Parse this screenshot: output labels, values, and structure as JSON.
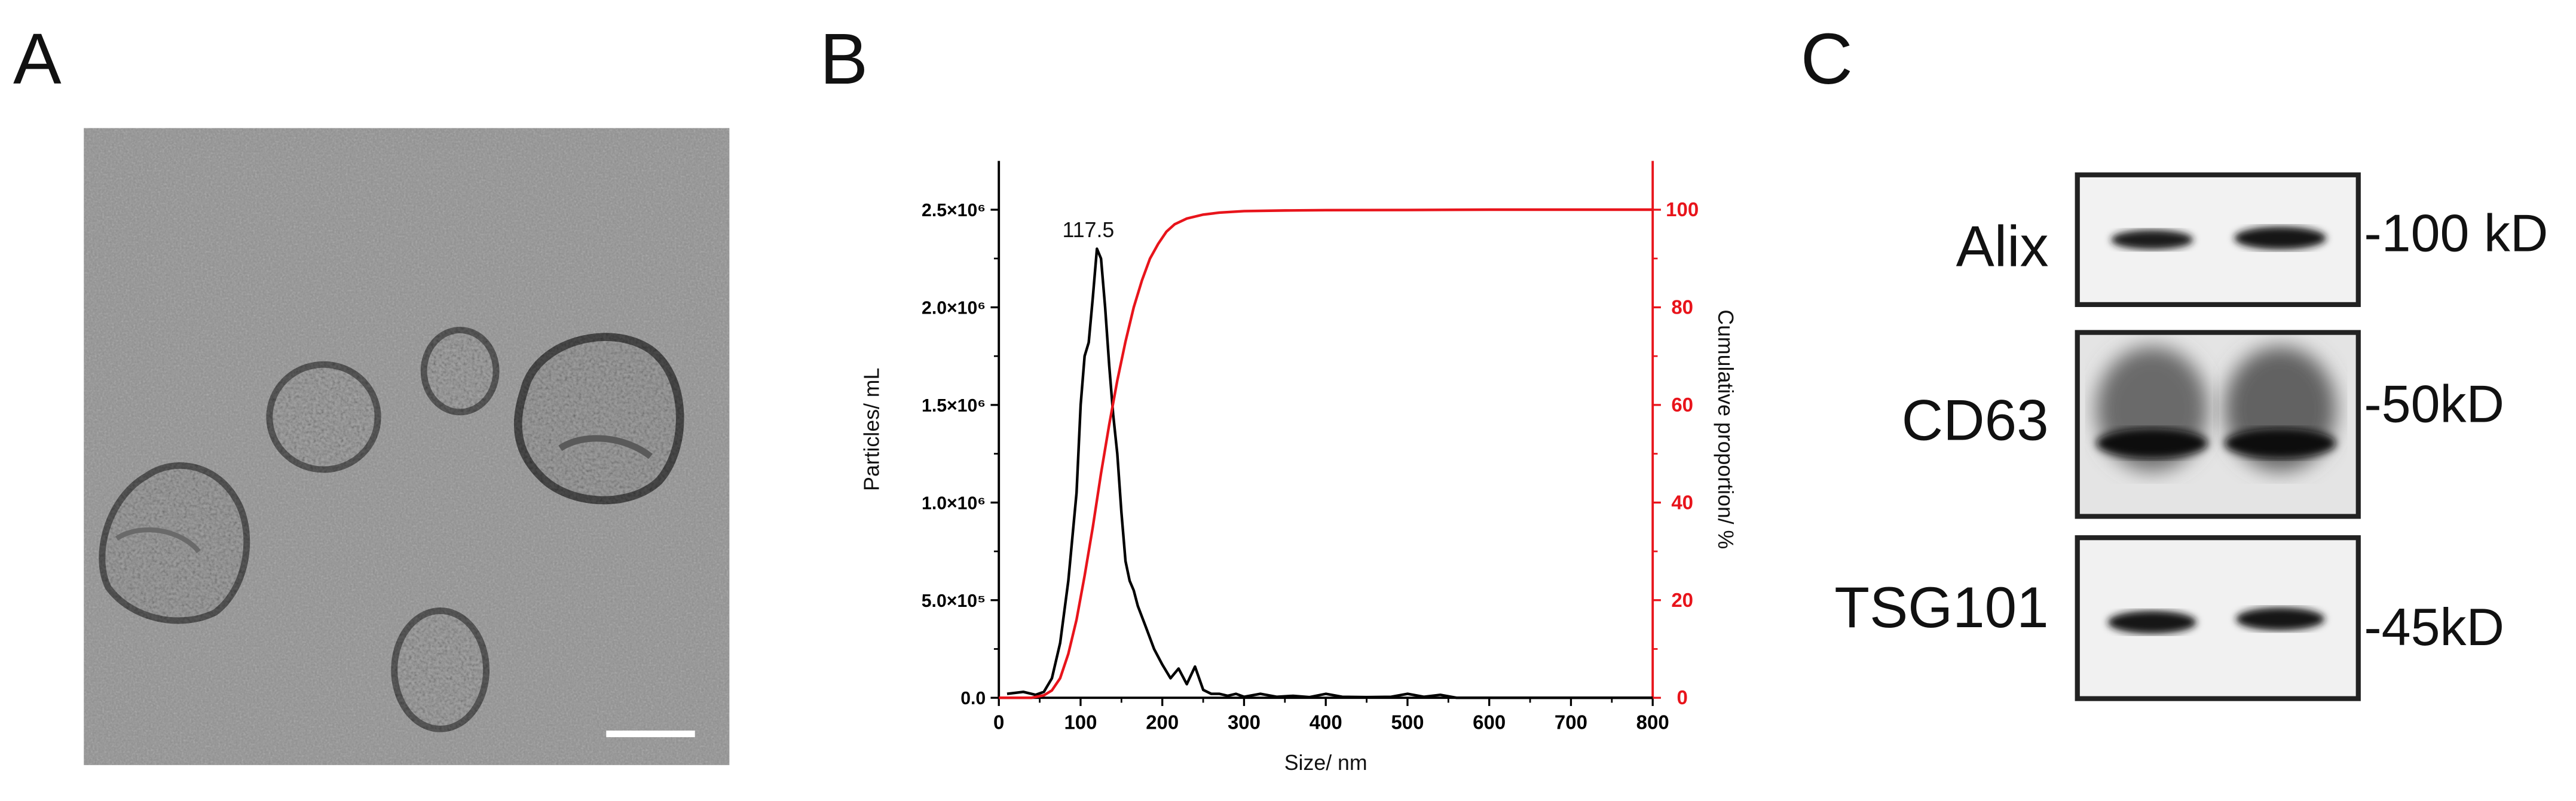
{
  "panels": {
    "a": {
      "letter": "A"
    },
    "b": {
      "letter": "B"
    },
    "c": {
      "letter": "C"
    }
  },
  "chart_data": {
    "type": "line",
    "title": "",
    "xlabel": "Size/ nm",
    "ylabel": "Particles/ mL",
    "y2label": "Cumulative proportion/ %",
    "xlim": [
      0,
      800
    ],
    "ylim": [
      0,
      2750000.0
    ],
    "y2lim": [
      0,
      110
    ],
    "x_ticks": [
      "0",
      "100",
      "200",
      "300",
      "400",
      "500",
      "600",
      "700",
      "800"
    ],
    "y_ticks": [
      {
        "value": 0,
        "label": "0.0"
      },
      {
        "value": 500000,
        "label": "5.0×10⁵"
      },
      {
        "value": 1000000,
        "label": "1.0×10⁶"
      },
      {
        "value": 1500000,
        "label": "1.5×10⁶"
      },
      {
        "value": 2000000,
        "label": "2.0×10⁶"
      },
      {
        "value": 2500000,
        "label": "2.5×10⁶"
      }
    ],
    "y2_ticks": [
      "0",
      "20",
      "40",
      "60",
      "80",
      "100"
    ],
    "peak_annotation": {
      "x": 117.5,
      "y": 2300000.0,
      "text": "117.5"
    },
    "grid": false,
    "series": [
      {
        "color": "#000000",
        "axis": "left",
        "x": [
          10,
          30,
          45,
          55,
          65,
          75,
          85,
          95,
          100,
          105,
          110,
          115,
          120,
          125,
          130,
          135,
          140,
          145,
          150,
          155,
          160,
          165,
          170,
          180,
          190,
          200,
          210,
          220,
          230,
          240,
          250,
          260,
          270,
          280,
          290,
          300,
          320,
          340,
          360,
          380,
          400,
          420,
          450,
          480,
          500,
          520,
          540,
          560,
          600,
          650,
          700,
          750,
          800
        ],
        "y": [
          20000,
          30000,
          15000,
          30000,
          100000,
          280000,
          600000,
          1050000,
          1500000,
          1750000,
          1820000,
          2050000,
          2300000,
          2250000,
          2000000,
          1700000,
          1450000,
          1250000,
          950000,
          700000,
          600000,
          550000,
          470000,
          360000,
          250000,
          170000,
          100000,
          150000,
          70000,
          160000,
          40000,
          20000,
          20000,
          10000,
          20000,
          5000,
          20000,
          5000,
          10000,
          3000,
          20000,
          5000,
          3000,
          5000,
          20000,
          5000,
          15000,
          0,
          0,
          0,
          0,
          0,
          0
        ]
      },
      {
        "color": "#e8141b",
        "axis": "right",
        "x": [
          0,
          20,
          40,
          55,
          65,
          75,
          85,
          95,
          105,
          115,
          125,
          135,
          145,
          155,
          165,
          175,
          185,
          195,
          205,
          215,
          230,
          250,
          270,
          300,
          350,
          400,
          500,
          600,
          700,
          800
        ],
        "y": [
          0,
          0,
          0,
          0.5,
          1.5,
          4,
          9,
          16,
          25,
          35,
          46,
          56,
          65,
          73,
          80,
          85.5,
          90,
          93,
          95.5,
          97,
          98.2,
          99,
          99.4,
          99.7,
          99.85,
          99.9,
          99.95,
          100,
          100,
          100
        ]
      }
    ]
  },
  "western_blot": {
    "rows": [
      {
        "protein": "Alix",
        "marker": "-100 kD"
      },
      {
        "protein": "CD63",
        "marker": "-50kD"
      },
      {
        "protein": "TSG101",
        "marker": "-45kD"
      }
    ],
    "lanes": 2
  },
  "colors": {
    "red_axis": "#e8141b",
    "black_axis": "#000000"
  }
}
